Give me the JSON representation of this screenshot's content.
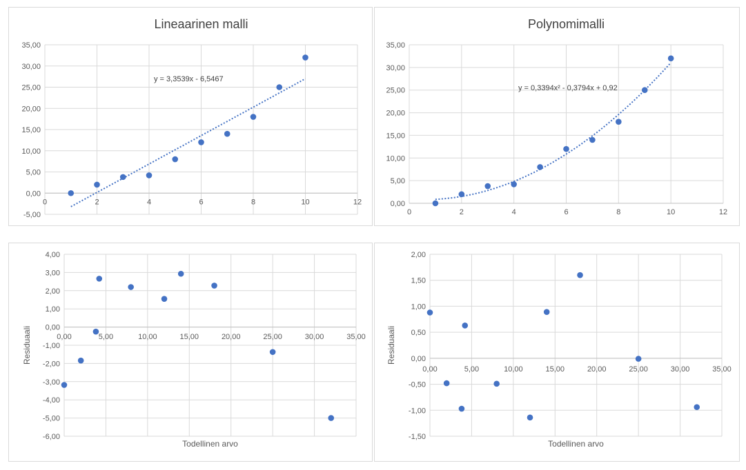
{
  "chart_data": [
    {
      "id": "linear",
      "type": "scatter",
      "title": "Lineaarinen malli",
      "xlabel": "",
      "ylabel": "",
      "x": [
        1,
        2,
        3,
        4,
        5,
        6,
        7,
        8,
        9,
        10
      ],
      "y": [
        0,
        2,
        3.8,
        4.2,
        8,
        12,
        14,
        18,
        25,
        32
      ],
      "xlim": [
        0,
        12
      ],
      "ylim": [
        -5,
        35
      ],
      "x_ticks": [
        "0",
        "2",
        "4",
        "6",
        "8",
        "10",
        "12"
      ],
      "y_ticks": [
        "-5,00",
        "0,00",
        "5,00",
        "10,00",
        "15,00",
        "20,00",
        "25,00",
        "30,00",
        "35,00"
      ],
      "trendline": {
        "kind": "linear",
        "coef": [
          -6.5467,
          3.3539
        ],
        "x_range": [
          1,
          10
        ],
        "equation": "y = 3,3539x - 6,5467"
      },
      "grid": true,
      "legend": "none"
    },
    {
      "id": "poly",
      "type": "scatter",
      "title": "Polynomimalli",
      "xlabel": "",
      "ylabel": "",
      "x": [
        1,
        2,
        3,
        4,
        5,
        6,
        7,
        8,
        9,
        10
      ],
      "y": [
        0,
        2,
        3.8,
        4.2,
        8,
        12,
        14,
        18,
        25,
        32
      ],
      "xlim": [
        0,
        12
      ],
      "ylim": [
        0,
        35
      ],
      "x_ticks": [
        "0",
        "2",
        "4",
        "6",
        "8",
        "10",
        "12"
      ],
      "y_ticks": [
        "0,00",
        "5,00",
        "10,00",
        "15,00",
        "20,00",
        "25,00",
        "30,00",
        "35,00"
      ],
      "trendline": {
        "kind": "polynomial",
        "coef": [
          0.92,
          -0.3794,
          0.3394
        ],
        "x_range": [
          1,
          10
        ],
        "equation": "y = 0,3394x² - 0,3794x + 0,92"
      },
      "grid": true,
      "legend": "none"
    },
    {
      "id": "resid-linear",
      "type": "scatter",
      "title": "",
      "xlabel": "Todellinen arvo",
      "ylabel": "Residuaali",
      "x": [
        0,
        2,
        3.8,
        4.2,
        8,
        12,
        14,
        18,
        25,
        32
      ],
      "y": [
        -3.18,
        -1.84,
        -0.25,
        2.66,
        2.2,
        1.55,
        2.93,
        2.28,
        -1.37,
        -5.0
      ],
      "xlim": [
        0,
        35
      ],
      "ylim": [
        -6,
        4
      ],
      "x_ticks": [
        "0,00",
        "5,00",
        "10,00",
        "15,00",
        "20,00",
        "25,00",
        "30,00",
        "35,00"
      ],
      "y_ticks": [
        "-6,00",
        "-5,00",
        "-4,00",
        "-3,00",
        "-2,00",
        "-1,00",
        "0,00",
        "1,00",
        "2,00",
        "3,00",
        "4,00"
      ],
      "grid": true,
      "legend": "none"
    },
    {
      "id": "resid-poly",
      "type": "scatter",
      "title": "",
      "xlabel": "Todellinen arvo",
      "ylabel": "Residuaali",
      "x": [
        0,
        2,
        3.8,
        4.2,
        8,
        12,
        14,
        18,
        25,
        32
      ],
      "y": [
        0.88,
        -0.48,
        -0.97,
        0.63,
        -0.49,
        -1.14,
        0.89,
        1.6,
        -0.01,
        -0.94
      ],
      "xlim": [
        0,
        35
      ],
      "ylim": [
        -1.5,
        2
      ],
      "x_ticks": [
        "0,00",
        "5,00",
        "10,00",
        "15,00",
        "20,00",
        "25,00",
        "30,00",
        "35,00"
      ],
      "y_ticks": [
        "-1,50",
        "-1,00",
        "-0,50",
        "0,00",
        "0,50",
        "1,00",
        "1,50",
        "2,00"
      ],
      "grid": true,
      "legend": "none"
    }
  ]
}
